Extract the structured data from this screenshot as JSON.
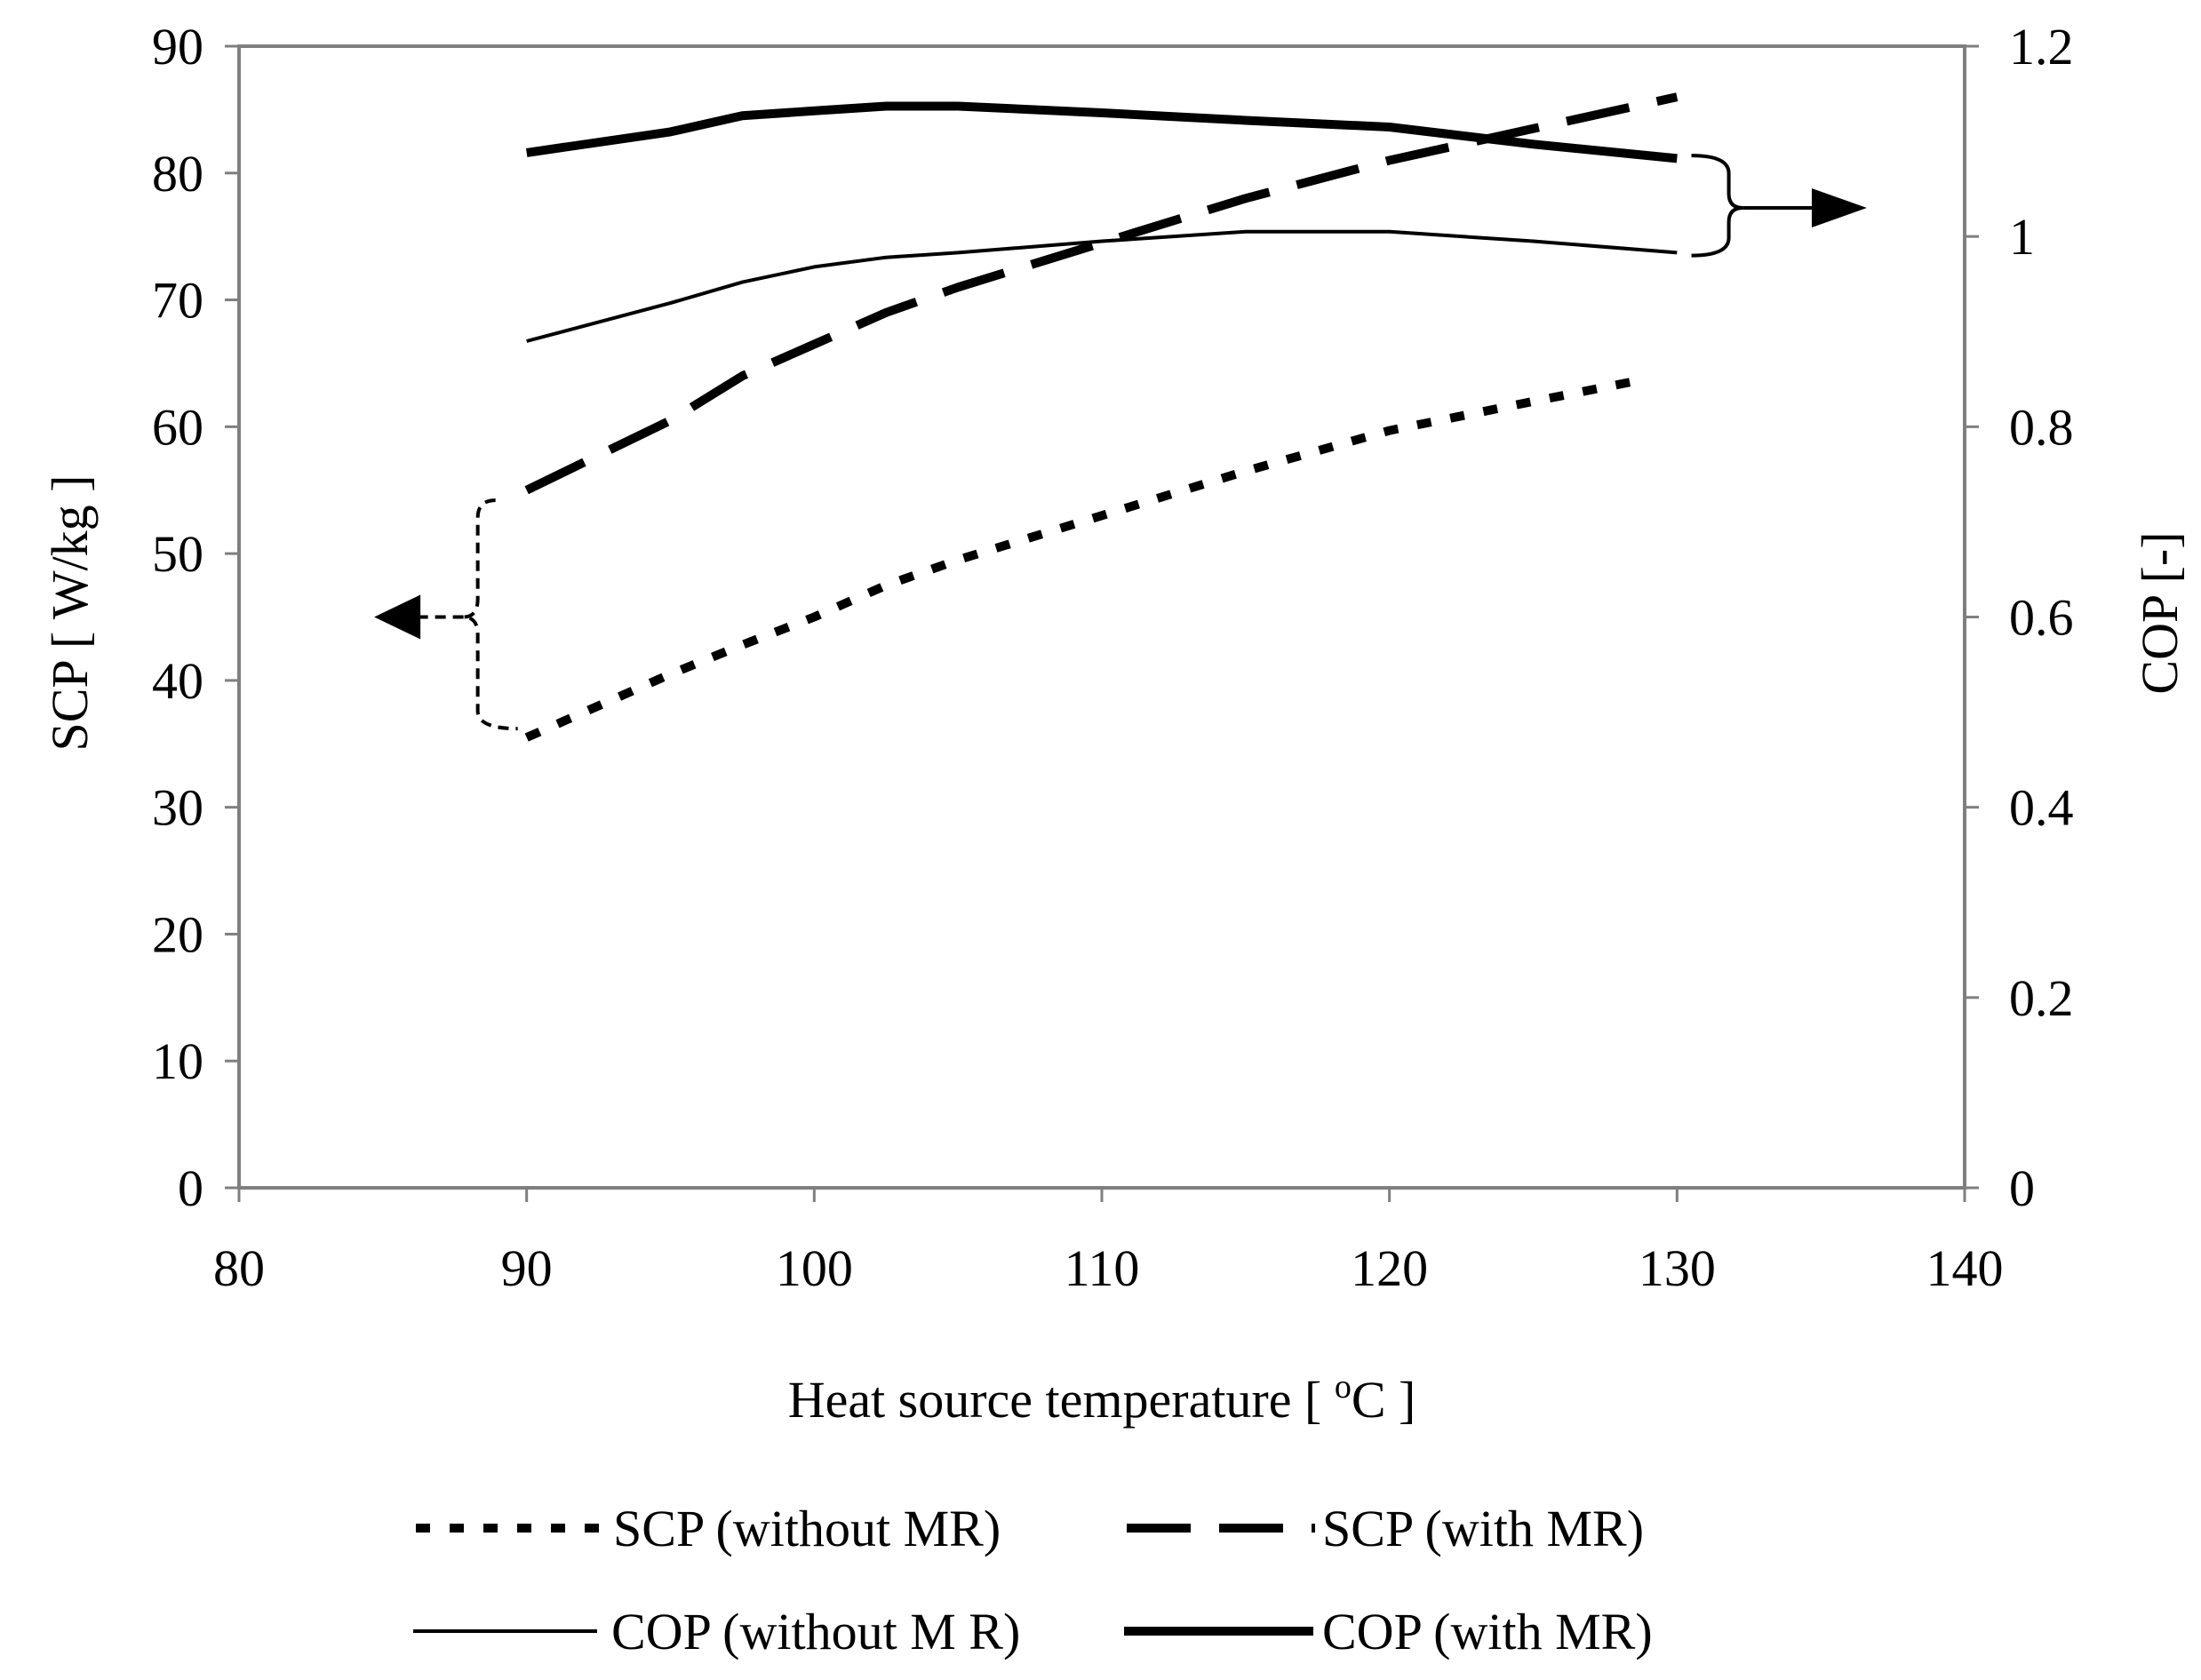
{
  "chart_data": {
    "type": "line",
    "title": "",
    "xlabel": "Heat source temperature [ oC ]",
    "xlabel_parts": {
      "prefix": "Heat source temperature [ ",
      "superscript": "o",
      "suffix": "C ]"
    },
    "ylabel_left": "SCP [ W/kg ]",
    "ylabel_right": "COP [-]",
    "xlim": [
      80,
      140
    ],
    "ylim_left": [
      0,
      90
    ],
    "ylim_right": [
      0,
      1.2
    ],
    "x_ticks": [
      "80",
      "90",
      "100",
      "110",
      "120",
      "130",
      "140"
    ],
    "y_left_ticks": [
      "0",
      "10",
      "20",
      "30",
      "40",
      "50",
      "60",
      "70",
      "80",
      "90"
    ],
    "y_right_ticks": [
      "0",
      "0.2",
      "0.4",
      "0.6",
      "0.8",
      "1",
      "1.2"
    ],
    "legend_position": "bottom",
    "series": [
      {
        "name": "SCP (without MR)",
        "axis": "left",
        "style": "dotted",
        "x": [
          90,
          95,
          97.5,
          100,
          102.5,
          105,
          110,
          115,
          120,
          125,
          129
        ],
        "y": [
          35.5,
          40.5,
          42.8,
          45.0,
          47.5,
          49.5,
          53.0,
          56.5,
          59.7,
          62.0,
          63.8
        ]
      },
      {
        "name": "SCP (with MR)",
        "axis": "left",
        "style": "dashed",
        "x": [
          90,
          95,
          97.5,
          100,
          102.5,
          105,
          110,
          115,
          120,
          125,
          130
        ],
        "y": [
          55.0,
          60.5,
          64.0,
          66.5,
          69.0,
          71.0,
          74.5,
          78.0,
          81.0,
          83.5,
          86.0
        ]
      },
      {
        "name": "COP (without M R)",
        "axis": "right",
        "style": "thin-solid",
        "x": [
          90,
          95,
          97.5,
          100,
          102.5,
          105,
          110,
          115,
          120,
          125,
          130
        ],
        "y": [
          0.89,
          0.93,
          0.952,
          0.968,
          0.978,
          0.983,
          0.995,
          1.005,
          1.005,
          0.995,
          0.983
        ]
      },
      {
        "name": "COP (with MR)",
        "axis": "right",
        "style": "thick-solid",
        "x": [
          90,
          95,
          97.5,
          100,
          102.5,
          105,
          110,
          115,
          120,
          125,
          130
        ],
        "y": [
          1.088,
          1.11,
          1.127,
          1.132,
          1.137,
          1.137,
          1.13,
          1.122,
          1.115,
          1.097,
          1.082
        ]
      }
    ],
    "annotations": [
      {
        "name": "left-brace-arrow",
        "points_to": "left axis (SCP)",
        "groups": [
          "SCP (without MR)",
          "SCP (with MR)"
        ]
      },
      {
        "name": "right-brace-arrow",
        "points_to": "right axis (COP)",
        "groups": [
          "COP (without M R)",
          "COP (with MR)"
        ]
      }
    ],
    "colors": {
      "line": "#000000",
      "frame": "#7f7f7f",
      "background": "#ffffff"
    }
  }
}
